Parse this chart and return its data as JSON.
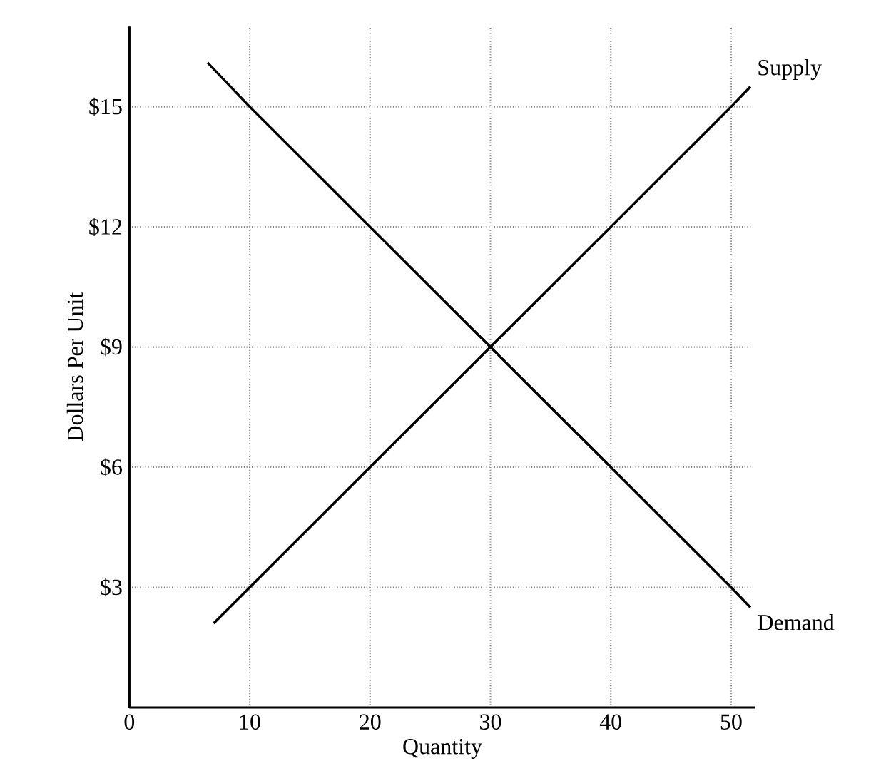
{
  "chart_data": {
    "type": "line",
    "xlabel": "Quantity",
    "ylabel": "Dollars Per Unit",
    "xlim": [
      0,
      52
    ],
    "ylim": [
      0,
      17
    ],
    "xticks": [
      0,
      10,
      20,
      30,
      40,
      50
    ],
    "yticks": [
      {
        "value": 3,
        "label": "$3"
      },
      {
        "value": 6,
        "label": "$6"
      },
      {
        "value": 9,
        "label": "$9"
      },
      {
        "value": 12,
        "label": "$12"
      },
      {
        "value": 15,
        "label": "$15"
      }
    ],
    "grid": true,
    "legend": false,
    "marker": "none",
    "line_style": "solid",
    "series": [
      {
        "name": "Supply",
        "color": "#000000",
        "x": [
          7,
          10,
          20,
          30,
          40,
          50,
          51.6
        ],
        "values": [
          2.1,
          3,
          6,
          9,
          12,
          15,
          15.5
        ]
      },
      {
        "name": "Demand",
        "color": "#000000",
        "x": [
          6.5,
          10,
          20,
          30,
          40,
          50,
          51.6
        ],
        "values": [
          16.1,
          15,
          12,
          9,
          6,
          3,
          2.5
        ]
      }
    ]
  }
}
